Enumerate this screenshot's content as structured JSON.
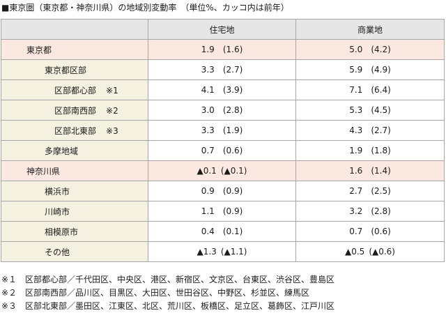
{
  "title": "■東京圏（東京都・神奈川県）の地域別変動率　（単位%、カッコ内は前年）",
  "table": {
    "headers": [
      "",
      "住宅地",
      "商業地"
    ],
    "rows": [
      {
        "name": "東京都",
        "note": "",
        "res": "1.9",
        "res_prev": "(1.6)",
        "com": "5.0",
        "com_prev": "(4.2)"
      },
      {
        "name": "東京都区部",
        "note": "",
        "res": "3.3",
        "res_prev": "(2.7)",
        "com": "5.9",
        "com_prev": "(4.9)"
      },
      {
        "name": "区部都心部",
        "note": "※1",
        "res": "4.1",
        "res_prev": "(3.9)",
        "com": "7.1",
        "com_prev": "(6.4)"
      },
      {
        "name": "区部南西部",
        "note": "※2",
        "res": "3.0",
        "res_prev": "(2.8)",
        "com": "5.3",
        "com_prev": "(4.5)"
      },
      {
        "name": "区部北東部",
        "note": "※3",
        "res": "3.3",
        "res_prev": "(1.9)",
        "com": "4.3",
        "com_prev": "(2.7)"
      },
      {
        "name": "多摩地域",
        "note": "",
        "res": "0.7",
        "res_prev": "(0.6)",
        "com": "1.9",
        "com_prev": "(1.8)"
      },
      {
        "name": "神奈川県",
        "note": "",
        "res": "▲0.1",
        "res_prev": "(▲0.1)",
        "com": "1.6",
        "com_prev": "(1.4)"
      },
      {
        "name": "横浜市",
        "note": "",
        "res": "0.9",
        "res_prev": "(0.9)",
        "com": "2.7",
        "com_prev": "(2.5)"
      },
      {
        "name": "川崎市",
        "note": "",
        "res": "1.1",
        "res_prev": "(0.9)",
        "com": "3.2",
        "com_prev": "(2.8)"
      },
      {
        "name": "相模原市",
        "note": "",
        "res": "0.4",
        "res_prev": "(0.1)",
        "com": "0.7",
        "com_prev": "(0.6)"
      },
      {
        "name": "その他",
        "note": "",
        "res": "▲1.3",
        "res_prev": "(▲1.1)",
        "com": "▲0.5",
        "com_prev": "(▲0.6)"
      }
    ]
  },
  "footnotes": [
    "※１　区部都心部／千代田区、中央区、港区、新宿区、文京区、台東区、渋谷区、豊島区",
    "※２　区部南西部／品川区、目黒区、大田区、世田谷区、中野区、杉並区、練馬区",
    "※３　区部北東部／墨田区、江東区、北区、荒川区、板橋区、足立区、葛飾区、江戸川区"
  ]
}
